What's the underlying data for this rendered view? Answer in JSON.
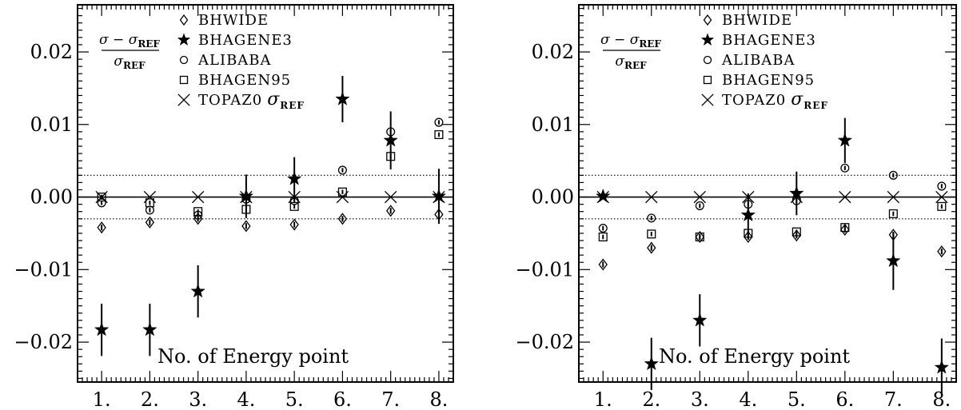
{
  "chart_data": [
    {
      "type": "scatter",
      "ylabel_formula": {
        "numerator": "σ − σ",
        "numerator_sub": "REF",
        "denominator": "σ",
        "denominator_sub": "REF"
      },
      "xlabel": "No. of Energy point",
      "xticks": [
        "1.",
        "2.",
        "3.",
        "4.",
        "5.",
        "6.",
        "7.",
        "8."
      ],
      "yticks": [
        "−0.02",
        "−0.01",
        "0.00",
        "0.01",
        "0.02"
      ],
      "ytick_values": [
        -0.02,
        -0.01,
        0.0,
        0.01,
        0.02
      ],
      "xlim": [
        0.5,
        8.3
      ],
      "ylim": [
        -0.0255,
        0.0265
      ],
      "hlines": [
        {
          "y": 0.003,
          "style": "dotted"
        },
        {
          "y": -0.003,
          "style": "dotted"
        },
        {
          "y": 0.0,
          "style": "solid"
        }
      ],
      "x": [
        1,
        2,
        3,
        4,
        5,
        6,
        7,
        8
      ],
      "series": [
        {
          "name": "BHWIDE",
          "marker": "diamond",
          "values": [
            -0.0042,
            -0.0035,
            -0.003,
            -0.004,
            -0.0038,
            -0.003,
            -0.0019,
            -0.0024
          ],
          "errors": [
            0.0004,
            0.0004,
            0.0004,
            0.0004,
            0.0004,
            0.0004,
            0.0004,
            0.0004
          ]
        },
        {
          "name": "BHAGENE3",
          "marker": "star",
          "values": [
            -0.0183,
            -0.0183,
            -0.013,
            0.0001,
            0.0025,
            0.0135,
            0.0078,
            0.0001
          ],
          "errors": [
            0.0036,
            0.0036,
            0.0036,
            0.003,
            0.003,
            0.0032,
            0.004,
            0.0038
          ]
        },
        {
          "name": "ALIBABA",
          "marker": "circle",
          "values": [
            -0.0008,
            -0.0018,
            -0.0025,
            -0.0003,
            -0.0005,
            0.0037,
            0.009,
            0.0103
          ],
          "errors": [
            0.0003,
            0.0003,
            0.0003,
            0.0003,
            0.0003,
            0.0003,
            0.0003,
            0.0003
          ]
        },
        {
          "name": "BHAGEN95",
          "marker": "square",
          "values": [
            0.0,
            -0.0008,
            -0.002,
            -0.0017,
            -0.0013,
            0.0007,
            0.0056,
            0.0086
          ],
          "errors": [
            0.0003,
            0.0003,
            0.0003,
            0.0003,
            0.0003,
            0.0003,
            0.0003,
            0.0003
          ]
        },
        {
          "name": "TOPAZ0",
          "name_suffix": "σ",
          "name_suffix_sub": "REF",
          "marker": "cross",
          "values": [
            0,
            0,
            0,
            0,
            0,
            0,
            0,
            0
          ],
          "errors": [
            0,
            0,
            0,
            0,
            0,
            0,
            0,
            0
          ]
        }
      ]
    },
    {
      "type": "scatter",
      "ylabel_formula": {
        "numerator": "σ − σ",
        "numerator_sub": "REF",
        "denominator": "σ",
        "denominator_sub": "REF"
      },
      "xlabel": "No. of Energy point",
      "xticks": [
        "1.",
        "2.",
        "3.",
        "4.",
        "5.",
        "6.",
        "7.",
        "8."
      ],
      "yticks": [
        "−0.02",
        "−0.01",
        "0.00",
        "0.01",
        "0.02"
      ],
      "ytick_values": [
        -0.02,
        -0.01,
        0.0,
        0.01,
        0.02
      ],
      "xlim": [
        0.5,
        8.3
      ],
      "ylim": [
        -0.0255,
        0.0265
      ],
      "hlines": [
        {
          "y": 0.003,
          "style": "dotted"
        },
        {
          "y": -0.003,
          "style": "dotted"
        },
        {
          "y": 0.0,
          "style": "solid"
        }
      ],
      "x": [
        1,
        2,
        3,
        4,
        5,
        6,
        7,
        8
      ],
      "series": [
        {
          "name": "BHWIDE",
          "marker": "diamond",
          "values": [
            -0.0093,
            -0.007,
            -0.0055,
            -0.0055,
            -0.0053,
            -0.0045,
            -0.0052,
            -0.0075
          ],
          "errors": [
            0.0004,
            0.0004,
            0.0004,
            0.0004,
            0.0004,
            0.0004,
            0.0004,
            0.0004
          ]
        },
        {
          "name": "BHAGENE3",
          "marker": "star",
          "values": [
            0.0001,
            -0.023,
            -0.017,
            -0.0025,
            0.0005,
            0.0078,
            -0.0088,
            -0.0235
          ],
          "errors": [
            0.0003,
            0.0036,
            0.0036,
            0.003,
            0.003,
            0.0031,
            0.004,
            0.004
          ]
        },
        {
          "name": "ALIBABA",
          "marker": "circle",
          "values": [
            -0.0043,
            -0.0029,
            -0.0012,
            -0.001,
            -0.0005,
            0.004,
            0.003,
            0.0015
          ],
          "errors": [
            0.0003,
            0.0003,
            0.0003,
            0.0003,
            0.0003,
            0.0003,
            0.0003,
            0.0003
          ]
        },
        {
          "name": "BHAGEN95",
          "marker": "square",
          "values": [
            -0.0055,
            -0.0051,
            -0.0055,
            -0.005,
            -0.0048,
            -0.0042,
            -0.0023,
            -0.0013
          ],
          "errors": [
            0.0003,
            0.0003,
            0.0003,
            0.0003,
            0.0003,
            0.0003,
            0.0003,
            0.0003
          ]
        },
        {
          "name": "TOPAZ0",
          "name_suffix": "σ",
          "name_suffix_sub": "REF",
          "marker": "cross",
          "values": [
            0,
            0,
            0,
            0,
            0,
            0,
            0,
            0
          ],
          "errors": [
            0,
            0,
            0,
            0,
            0,
            0,
            0,
            0
          ]
        }
      ]
    }
  ]
}
